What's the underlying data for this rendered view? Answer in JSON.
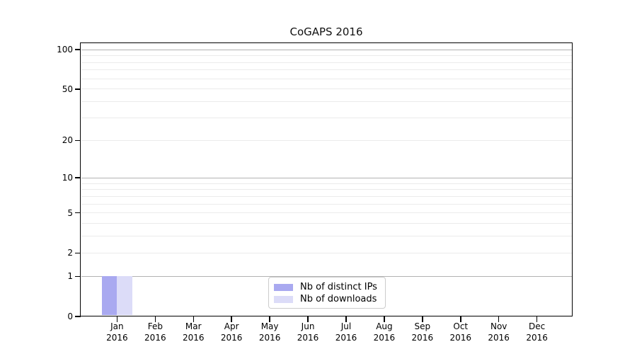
{
  "chart_data": {
    "type": "bar",
    "title": "CoGAPS 2016",
    "categories": [
      "Jan",
      "Feb",
      "Mar",
      "Apr",
      "May",
      "Jun",
      "Jul",
      "Aug",
      "Sep",
      "Oct",
      "Nov",
      "Dec"
    ],
    "category_labels": [
      {
        "month": "Jan",
        "year": "2016"
      },
      {
        "month": "Feb",
        "year": "2016"
      },
      {
        "month": "Mar",
        "year": "2016"
      },
      {
        "month": "Apr",
        "year": "2016"
      },
      {
        "month": "May",
        "year": "2016"
      },
      {
        "month": "Jun",
        "year": "2016"
      },
      {
        "month": "Jul",
        "year": "2016"
      },
      {
        "month": "Aug",
        "year": "2016"
      },
      {
        "month": "Sep",
        "year": "2016"
      },
      {
        "month": "Oct",
        "year": "2016"
      },
      {
        "month": "Nov",
        "year": "2016"
      },
      {
        "month": "Dec",
        "year": "2016"
      }
    ],
    "series": [
      {
        "name": "Nb of distinct IPs",
        "color": "#a9a9f0",
        "values": [
          1,
          0,
          0,
          0,
          0,
          0,
          0,
          0,
          0,
          0,
          0,
          0
        ]
      },
      {
        "name": "Nb of downloads",
        "color": "#dcdcf8",
        "values": [
          1,
          0,
          0,
          0,
          0,
          0,
          0,
          0,
          0,
          0,
          0,
          0
        ]
      }
    ],
    "xlabel": "",
    "ylabel": "",
    "yscale": "log1p",
    "ylim": [
      0,
      112
    ],
    "yticks": [
      0,
      1,
      2,
      5,
      10,
      20,
      50,
      100
    ],
    "y_major_gridlines": [
      1,
      10,
      100
    ],
    "y_minor_gridlines": [
      2,
      3,
      4,
      5,
      6,
      7,
      8,
      9,
      20,
      30,
      40,
      50,
      60,
      70,
      80,
      90
    ],
    "grid": true,
    "legend_position": "bottom-center",
    "colors": {
      "major_grid": "#b2b2b2",
      "minor_grid": "#ebebeb",
      "spine": "#000000",
      "background": "#ffffff"
    }
  }
}
